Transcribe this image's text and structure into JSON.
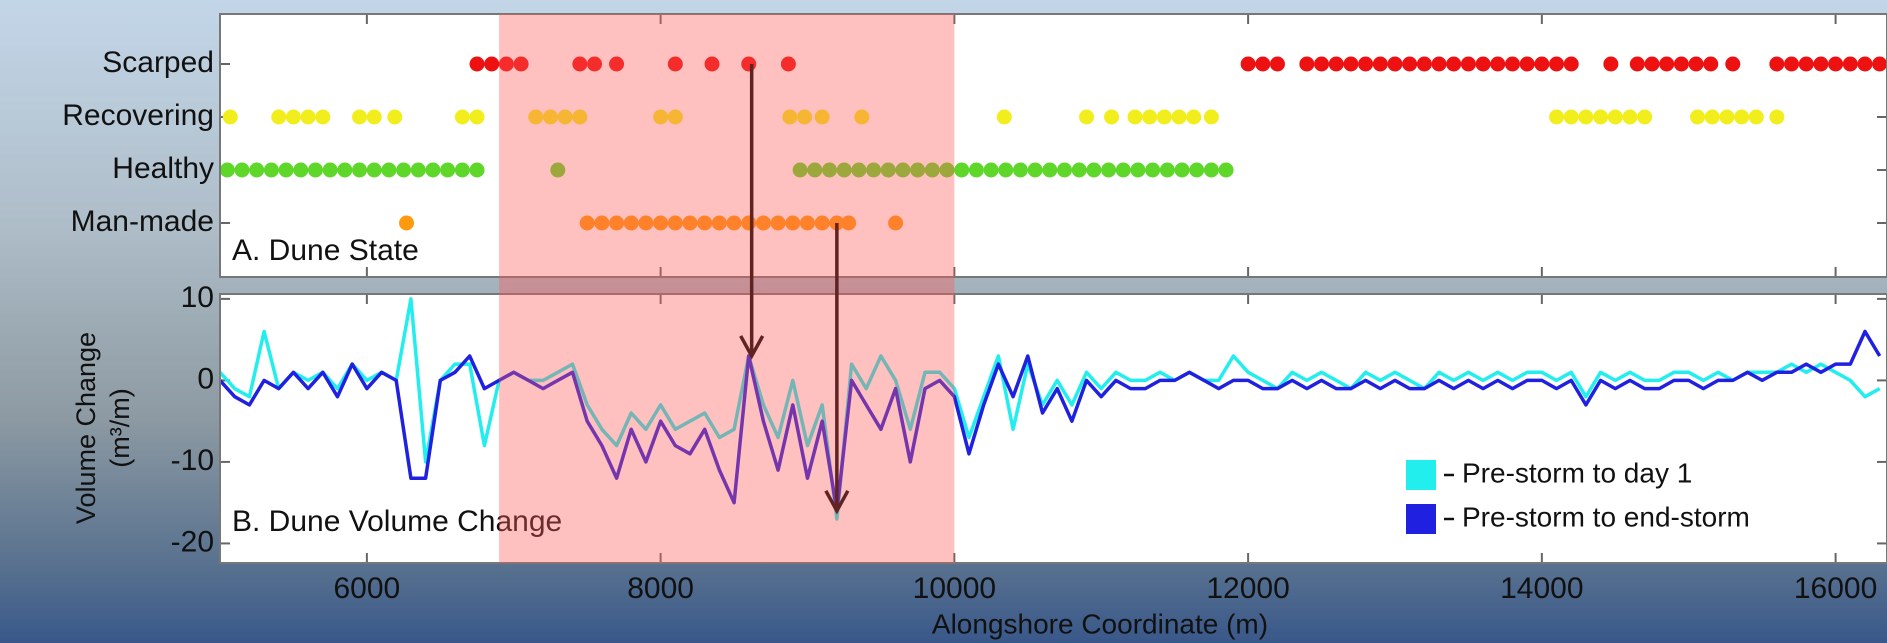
{
  "chart_data": [
    {
      "type": "scatter",
      "title": "A. Dune State",
      "xlim": [
        5000,
        16350
      ],
      "xticks": [
        6000,
        8000,
        10000,
        12000,
        14000,
        16000
      ],
      "shaded_region": [
        6900,
        10000
      ],
      "series": [
        {
          "name": "Man-made",
          "color": "#ff9a0e",
          "x": [
            6270,
            7500,
            7600,
            7700,
            7800,
            7900,
            8000,
            8100,
            8200,
            8300,
            8400,
            8500,
            8600,
            8700,
            8800,
            8900,
            9000,
            9100,
            9200,
            9280,
            9600
          ]
        },
        {
          "name": "Healthy",
          "color": "#5fd72a",
          "x": [
            5050,
            5150,
            5250,
            5350,
            5450,
            5550,
            5650,
            5750,
            5850,
            5950,
            6050,
            6150,
            6250,
            6350,
            6450,
            6550,
            6650,
            6750,
            7300,
            8950,
            9050,
            9150,
            9250,
            9350,
            9450,
            9550,
            9650,
            9750,
            9850,
            9950,
            10050,
            10150,
            10250,
            10350,
            10450,
            10550,
            10650,
            10750,
            10850,
            10950,
            11050,
            11150,
            11250,
            11350,
            11450,
            11550,
            11650,
            11750,
            11850
          ]
        },
        {
          "name": "Recovering",
          "color": "#f2ee1e",
          "x": [
            5070,
            5400,
            5500,
            5600,
            5700,
            5950,
            6050,
            6190,
            6650,
            6750,
            7150,
            7250,
            7350,
            7450,
            8000,
            8100,
            8880,
            8980,
            9100,
            9370,
            10340,
            10900,
            11070,
            11230,
            11330,
            11430,
            11530,
            11630,
            11750,
            14100,
            14200,
            14300,
            14400,
            14500,
            14600,
            14700,
            15060,
            15160,
            15260,
            15360,
            15460,
            15600
          ]
        },
        {
          "name": "Scarped",
          "color": "#ee1111",
          "x": [
            6750,
            6850,
            6950,
            7050,
            7450,
            7550,
            7700,
            8100,
            8350,
            8600,
            8870,
            12000,
            12100,
            12200,
            12400,
            12500,
            12600,
            12700,
            12800,
            12900,
            13000,
            13100,
            13200,
            13300,
            13400,
            13500,
            13600,
            13700,
            13800,
            13900,
            14000,
            14100,
            14200,
            14470,
            14650,
            14750,
            14850,
            14950,
            15050,
            15150,
            15300,
            15600,
            15700,
            15800,
            15900,
            16000,
            16100,
            16200,
            16300
          ]
        }
      ]
    },
    {
      "type": "line",
      "title": "B. Dune Volume Change",
      "x_label": "Alongshore Coordinate (m)",
      "y_label": [
        "Volume Change",
        "(m³/m)"
      ],
      "xlim": [
        5000,
        16350
      ],
      "xticks": [
        6000,
        8000,
        10000,
        12000,
        14000,
        16000
      ],
      "ylim": [
        -22.4,
        10.6
      ],
      "yticks": [
        -20,
        -10,
        0,
        10
      ],
      "legend": "lower right",
      "arrows": [
        {
          "x": 8620,
          "y": 3
        },
        {
          "x": 9200,
          "y": -16
        }
      ],
      "x": [
        5000,
        5100,
        5200,
        5300,
        5400,
        5500,
        5600,
        5700,
        5800,
        5900,
        6000,
        6100,
        6200,
        6300,
        6400,
        6500,
        6600,
        6700,
        6800,
        6900,
        7000,
        7100,
        7200,
        7300,
        7400,
        7500,
        7600,
        7700,
        7800,
        7900,
        8000,
        8100,
        8200,
        8300,
        8400,
        8500,
        8600,
        8700,
        8800,
        8900,
        9000,
        9100,
        9200,
        9300,
        9400,
        9500,
        9600,
        9700,
        9800,
        9900,
        10000,
        10100,
        10200,
        10300,
        10400,
        10500,
        10600,
        10700,
        10800,
        10900,
        11000,
        11100,
        11200,
        11300,
        11400,
        11500,
        11600,
        11700,
        11800,
        11900,
        12000,
        12100,
        12200,
        12300,
        12400,
        12500,
        12600,
        12700,
        12800,
        12900,
        13000,
        13100,
        13200,
        13300,
        13400,
        13500,
        13600,
        13700,
        13800,
        13900,
        14000,
        14100,
        14200,
        14300,
        14400,
        14500,
        14600,
        14700,
        14800,
        14900,
        15000,
        15100,
        15200,
        15300,
        15400,
        15500,
        15600,
        15700,
        15800,
        15900,
        16000,
        16100,
        16200,
        16300
      ],
      "series": [
        {
          "name": "Pre-storm to day 1",
          "color": "#22eeee",
          "values": [
            1,
            -1,
            -2,
            6,
            -1,
            1,
            0,
            1,
            -1,
            2,
            0,
            1,
            0,
            10,
            -10,
            0,
            2,
            2,
            -8,
            0,
            1,
            0,
            0,
            1,
            2,
            -3,
            -6,
            -8,
            -4,
            -6,
            -3,
            -6,
            -5,
            -4,
            -7,
            -6,
            3,
            -3,
            -7,
            0,
            -8,
            -3,
            -17,
            2,
            -1,
            3,
            0,
            -6,
            1,
            1,
            -1,
            -7,
            -2,
            3,
            -6,
            2,
            -3,
            0,
            -3,
            1,
            -1,
            1,
            0,
            0,
            1,
            0,
            1,
            0,
            0,
            3,
            1,
            0,
            -1,
            1,
            0,
            1,
            0,
            -1,
            1,
            0,
            1,
            0,
            -1,
            1,
            0,
            1,
            0,
            1,
            0,
            1,
            1,
            0,
            1,
            -2,
            1,
            0,
            1,
            0,
            0,
            1,
            1,
            0,
            1,
            0,
            1,
            1,
            1,
            2,
            1,
            2,
            1,
            0,
            -2,
            -1
          ]
        },
        {
          "name": "Pre-storm to end-storm",
          "color": "#2020e0",
          "values": [
            0,
            -2,
            -3,
            0,
            -1,
            1,
            -1,
            1,
            -2,
            2,
            -1,
            1,
            0,
            -12,
            -12,
            0,
            1,
            3,
            -1,
            0,
            1,
            0,
            -1,
            0,
            1,
            -5,
            -8,
            -12,
            -6,
            -10,
            -5,
            -8,
            -9,
            -6,
            -11,
            -15,
            3,
            -5,
            -11,
            -3,
            -12,
            -5,
            -16,
            0,
            -3,
            -6,
            -1,
            -10,
            -1,
            0,
            -2,
            -9,
            -3,
            2,
            -2,
            3,
            -4,
            -1,
            -5,
            0,
            -2,
            0,
            -1,
            -1,
            0,
            0,
            1,
            0,
            -1,
            0,
            0,
            -1,
            -1,
            0,
            -1,
            0,
            -1,
            -1,
            0,
            -1,
            0,
            -1,
            -1,
            0,
            -1,
            0,
            -1,
            0,
            -1,
            0,
            0,
            -1,
            0,
            -3,
            0,
            -1,
            0,
            -1,
            -1,
            0,
            0,
            -1,
            0,
            0,
            1,
            0,
            1,
            1,
            2,
            1,
            2,
            2,
            6,
            3
          ]
        }
      ]
    }
  ]
}
